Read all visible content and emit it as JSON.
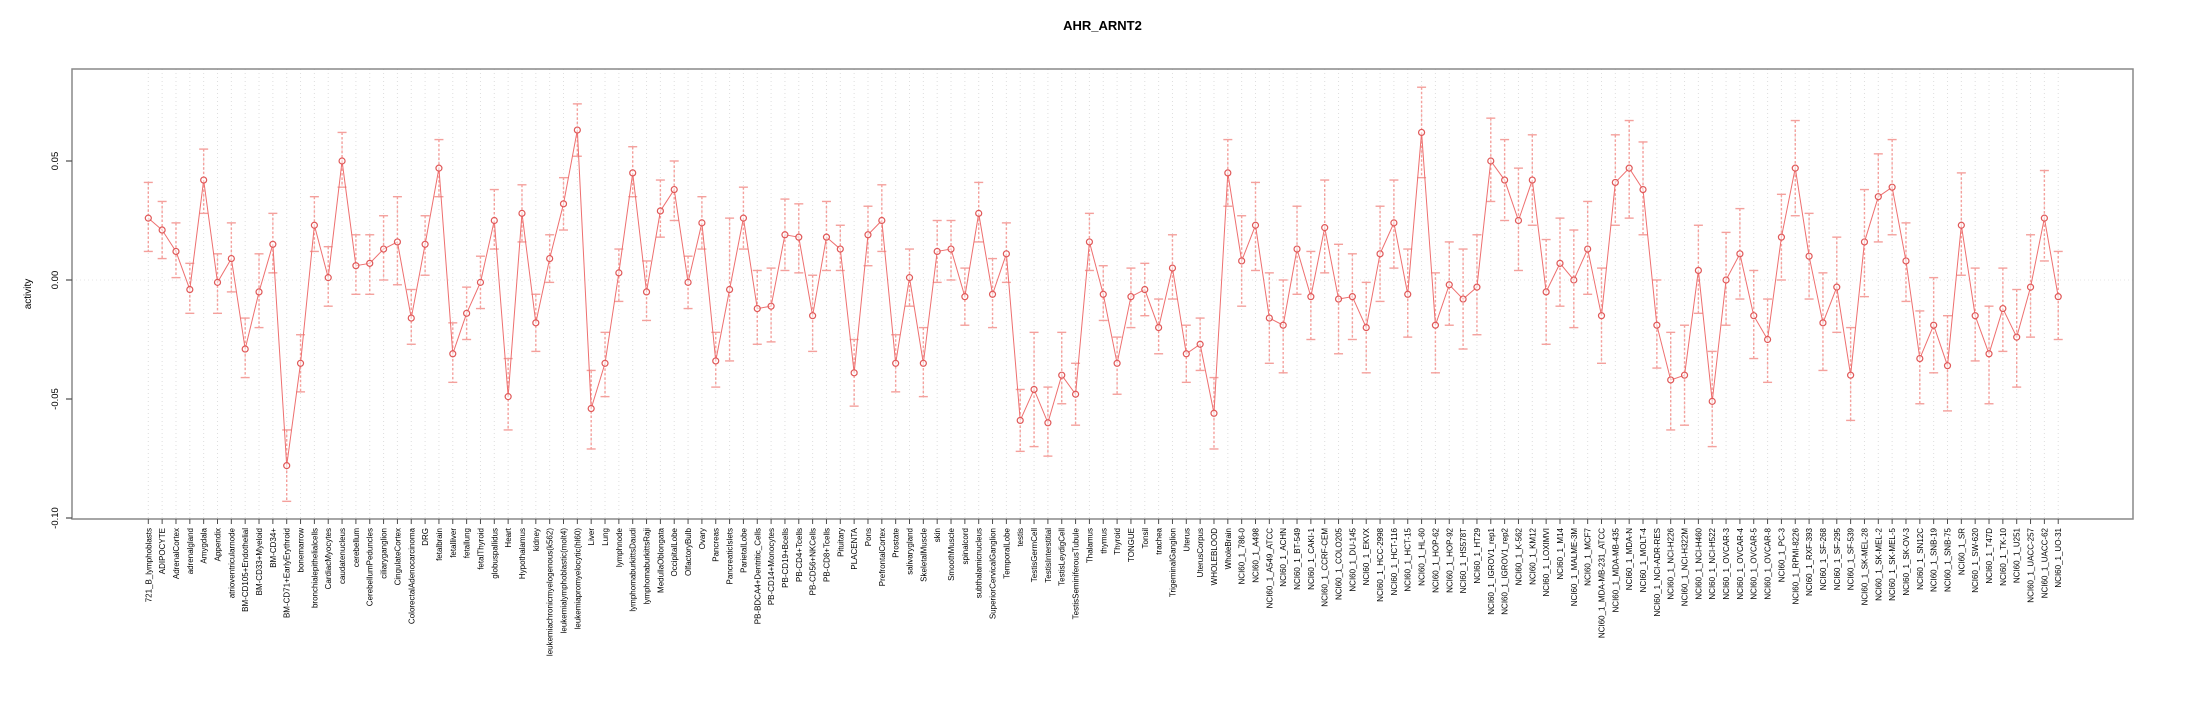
{
  "chart_data": {
    "type": "line",
    "title": "AHR_ARNT2",
    "xlabel": "",
    "ylabel": "activity",
    "ylim": [
      -0.1,
      0.0887
    ],
    "yticks": [
      {
        "value": 0.05,
        "label": "0.05"
      },
      {
        "value": 0.0,
        "label": "0.00"
      },
      {
        "value": -0.05,
        "label": "-0.05"
      },
      {
        "value": -0.1,
        "label": "-0.10"
      }
    ],
    "grid": "vertical-dotted-per-category-plus-zero-line",
    "legend": "none",
    "marker": "open-circle-with-error-bars",
    "colors": {
      "line": "#ee6f6f",
      "marker": "#e05858",
      "error_bar": "#f4a09c",
      "grid": "#dedede",
      "zero_line": "#e4e4e4",
      "box": "#888888",
      "tick": "#4d4d4d",
      "text": "#000000"
    },
    "categories": [
      "721_B_lymphoblasts",
      "ADIPOCYTE",
      "AdrenalCortex",
      "adrenalgland",
      "Amygdala",
      "Appendix",
      "atrioventricularnode",
      "BM-CD105+Endothelial",
      "BM-CD33+Myeloid",
      "BM-CD34+",
      "BM-CD71+EarlyErythroid",
      "bonemarrow",
      "bronchialepithelialcells",
      "CardiacMyocytes",
      "caudatenucleus",
      "cerebellum",
      "CerebellumPeduncles",
      "ciliaryganglion",
      "CingulateCortex",
      "ColorectalAdenocarcinoma",
      "DRG",
      "fetalbrain",
      "fetalliver",
      "fetallung",
      "fetalThyroid",
      "globuspallidus",
      "Heart",
      "Hypothalamus",
      "kidney",
      "leukemiachronicmyelogenous(k562)",
      "leukemialymphoblastic(molt4)",
      "leukemiapromyelocytic(hl60)",
      "Liver",
      "Lung",
      "lymphnode",
      "lymphomaburkittsDaudi",
      "lymphomaburkittsRaji",
      "MedullaOblongata",
      "OccipitalLobe",
      "OlfactoryBulb",
      "Ovary",
      "Pancreas",
      "PancreaticIslets",
      "ParietalLobe",
      "PB-BDCA4+Dentritic_Cells",
      "PB-CD14+Monocytes",
      "PB-CD19+Bcells",
      "PB-CD4+Tcells",
      "PB-CD56+NKCells",
      "PB-CD8+Tcells",
      "Pituitary",
      "PLACENTA",
      "Pons",
      "PrefrontalCortex",
      "Prostate",
      "salivarygland",
      "SkeletalMuscle",
      "skin",
      "SmoothMuscle",
      "spinalcord",
      "subthalamicnucleus",
      "SuperiorCervicalGanglion",
      "TemporalLobe",
      "testis",
      "TestisGermCell",
      "TestisInterstitial",
      "TestisLeydigCell",
      "TestisSeminiferousTubule",
      "Thalamus",
      "thymus",
      "Thyroid",
      "TONGUE",
      "Tonsil",
      "trachea",
      "TrigeminalGanglion",
      "Uterus",
      "UterusCorpus",
      "WHOLEBLOOD",
      "WholeBrain",
      "NCI60_1_786-0",
      "NCI60_1_A498",
      "NCI60_1_A549_ATCC",
      "NCI60_1_ACHN",
      "NCI60_1_BT-549",
      "NCI60_1_CAKI-1",
      "NCI60_1_CCRF-CEM",
      "NCI60_1_COLO205",
      "NCI60_1_DU-145",
      "NCI60_1_EKVX",
      "NCI60_1_HCC-2998",
      "NCI60_1_HCT-116",
      "NCI60_1_HCT-15",
      "NCI60_1_HL-60",
      "NCI60_1_HOP-62",
      "NCI60_1_HOP-92",
      "NCI60_1_HS578T",
      "NCI60_1_HT29",
      "NCI60_1_IGROV1_rep1",
      "NCI60_1_IGROV1_rep2",
      "NCI60_1_K-562",
      "NCI60_1_KM12",
      "NCI60_1_LOXIMVI",
      "NCI60_1_M14",
      "NCI60_1_MALME-3M",
      "NCI60_1_MCF7",
      "NCI60_1_MDA-MB-231_ATCC",
      "NCI60_1_MDA-MB-435",
      "NCI60_1_MDA-N",
      "NCI60_1_MOLT-4",
      "NCI60_1_NCI-ADR-RES",
      "NCI60_1_NCI-H226",
      "NCI60_1_NCI-H322M",
      "NCI60_1_NCI-H460",
      "NCI60_1_NCI-H522",
      "NCI60_1_OVCAR-3",
      "NCI60_1_OVCAR-4",
      "NCI60_1_OVCAR-5",
      "NCI60_1_OVCAR-8",
      "NCI60_1_PC-3",
      "NCI60_1_RPMI-8226",
      "NCI60_1_RXF-393",
      "NCI60_1_SF-268",
      "NCI60_1_SF-295",
      "NCI60_1_SF-539",
      "NCI60_1_SK-MEL-28",
      "NCI60_1_SK-MEL-2",
      "NCI60_1_SK-MEL-5",
      "NCI60_1_SK-OV-3",
      "NCI60_1_SN12C",
      "NCI60_1_SNB-19",
      "NCI60_1_SNB-75",
      "NCI60_1_SR",
      "NCI60_1_SW-620",
      "NCI60_1_T47D",
      "NCI60_1_TK-10",
      "NCI60_1_U251",
      "NCI60_1_UACC-257",
      "NCI60_1_UACC-62",
      "NCI60_1_UO-31"
    ],
    "values": [
      0.026,
      0.021,
      0.012,
      -0.004,
      0.042,
      -0.001,
      0.009,
      -0.029,
      -0.005,
      0.015,
      -0.078,
      -0.035,
      0.023,
      0.001,
      0.05,
      0.006,
      0.007,
      0.013,
      0.016,
      -0.016,
      0.015,
      0.047,
      -0.031,
      -0.014,
      -0.001,
      0.025,
      -0.049,
      0.028,
      -0.018,
      0.009,
      0.032,
      0.063,
      -0.054,
      -0.035,
      0.003,
      0.045,
      -0.005,
      0.029,
      0.038,
      -0.001,
      0.024,
      -0.034,
      -0.004,
      0.026,
      -0.012,
      -0.011,
      0.019,
      0.018,
      -0.015,
      0.018,
      0.013,
      -0.039,
      0.019,
      0.025,
      -0.035,
      0.001,
      -0.035,
      0.012,
      0.013,
      -0.007,
      0.028,
      -0.006,
      0.011,
      -0.059,
      -0.046,
      -0.06,
      -0.04,
      -0.048,
      0.016,
      -0.006,
      -0.035,
      -0.007,
      -0.004,
      -0.02,
      0.005,
      -0.031,
      -0.027,
      -0.056,
      0.045,
      0.008,
      0.023,
      -0.016,
      -0.019,
      0.013,
      -0.007,
      0.022,
      -0.008,
      -0.007,
      -0.02,
      0.011,
      0.024,
      -0.006,
      0.062,
      -0.019,
      -0.002,
      -0.008,
      -0.003,
      0.05,
      0.042,
      0.025,
      0.042,
      -0.005,
      0.007,
      0.0,
      0.013,
      -0.015,
      0.041,
      0.047,
      0.038,
      -0.019,
      -0.042,
      -0.04,
      0.004,
      -0.051,
      0.0,
      0.011,
      -0.015,
      -0.025,
      0.018,
      0.047,
      0.01,
      -0.018,
      -0.003,
      -0.04,
      0.016,
      0.035,
      0.039,
      0.008,
      -0.033,
      -0.019,
      -0.036,
      0.023,
      -0.015,
      -0.031,
      -0.012,
      -0.024,
      -0.003,
      0.026,
      -0.007
    ],
    "err_lo": [
      0.012,
      0.009,
      0.001,
      -0.014,
      0.028,
      -0.014,
      -0.005,
      -0.041,
      -0.02,
      0.003,
      -0.093,
      -0.047,
      0.012,
      -0.011,
      0.039,
      -0.006,
      -0.006,
      0.0,
      -0.002,
      -0.027,
      0.002,
      0.035,
      -0.043,
      -0.025,
      -0.012,
      0.013,
      -0.063,
      0.016,
      -0.03,
      -0.001,
      0.021,
      0.052,
      -0.071,
      -0.049,
      -0.009,
      0.035,
      -0.017,
      0.018,
      0.025,
      -0.012,
      0.013,
      -0.045,
      -0.034,
      0.013,
      -0.027,
      -0.026,
      0.004,
      0.003,
      -0.03,
      0.004,
      0.004,
      -0.053,
      0.006,
      0.012,
      -0.047,
      -0.011,
      -0.049,
      -0.001,
      0.0,
      -0.019,
      0.016,
      -0.02,
      -0.001,
      -0.072,
      -0.07,
      -0.074,
      -0.052,
      -0.061,
      0.004,
      -0.017,
      -0.048,
      -0.02,
      -0.015,
      -0.031,
      -0.008,
      -0.043,
      -0.038,
      -0.071,
      0.031,
      -0.011,
      0.004,
      -0.035,
      -0.039,
      -0.006,
      -0.025,
      0.003,
      -0.031,
      -0.025,
      -0.039,
      -0.009,
      0.005,
      -0.024,
      0.043,
      -0.039,
      -0.019,
      -0.029,
      -0.023,
      0.033,
      0.025,
      0.004,
      0.023,
      -0.027,
      -0.011,
      -0.02,
      -0.006,
      -0.035,
      0.023,
      0.026,
      0.019,
      -0.037,
      -0.063,
      -0.061,
      -0.014,
      -0.07,
      -0.019,
      -0.008,
      -0.033,
      -0.043,
      0.0,
      0.027,
      -0.008,
      -0.038,
      -0.022,
      -0.059,
      -0.007,
      0.016,
      0.019,
      -0.009,
      -0.052,
      -0.039,
      -0.055,
      0.002,
      -0.034,
      -0.052,
      -0.03,
      -0.045,
      -0.024,
      0.008,
      -0.025
    ],
    "err_hi": [
      0.041,
      0.033,
      0.024,
      0.007,
      0.055,
      0.011,
      0.024,
      -0.016,
      0.011,
      0.028,
      -0.063,
      -0.023,
      0.035,
      0.014,
      0.062,
      0.019,
      0.019,
      0.027,
      0.035,
      -0.004,
      0.027,
      0.059,
      -0.018,
      -0.003,
      0.01,
      0.038,
      -0.033,
      0.04,
      -0.006,
      0.019,
      0.043,
      0.074,
      -0.038,
      -0.022,
      0.013,
      0.056,
      0.008,
      0.042,
      0.05,
      0.01,
      0.035,
      -0.022,
      0.026,
      0.039,
      0.004,
      0.005,
      0.034,
      0.032,
      0.002,
      0.033,
      0.023,
      -0.025,
      0.031,
      0.04,
      -0.023,
      0.013,
      -0.02,
      0.025,
      0.025,
      0.005,
      0.041,
      0.009,
      0.024,
      -0.046,
      -0.022,
      -0.045,
      -0.022,
      -0.035,
      0.028,
      0.006,
      -0.024,
      0.005,
      0.007,
      -0.008,
      0.019,
      -0.019,
      -0.016,
      -0.041,
      0.059,
      0.027,
      0.041,
      0.003,
      0.0,
      0.031,
      0.012,
      0.042,
      0.015,
      0.011,
      -0.001,
      0.031,
      0.042,
      0.013,
      0.081,
      0.003,
      0.016,
      0.013,
      0.019,
      0.068,
      0.059,
      0.047,
      0.061,
      0.017,
      0.026,
      0.021,
      0.033,
      0.005,
      0.061,
      0.067,
      0.058,
      0.0,
      -0.022,
      -0.019,
      0.023,
      -0.03,
      0.02,
      0.03,
      0.004,
      -0.008,
      0.036,
      0.067,
      0.028,
      0.003,
      0.018,
      -0.02,
      0.038,
      0.053,
      0.059,
      0.024,
      -0.013,
      0.001,
      -0.015,
      0.045,
      0.005,
      -0.011,
      0.005,
      -0.004,
      0.019,
      0.046,
      0.012
    ]
  }
}
